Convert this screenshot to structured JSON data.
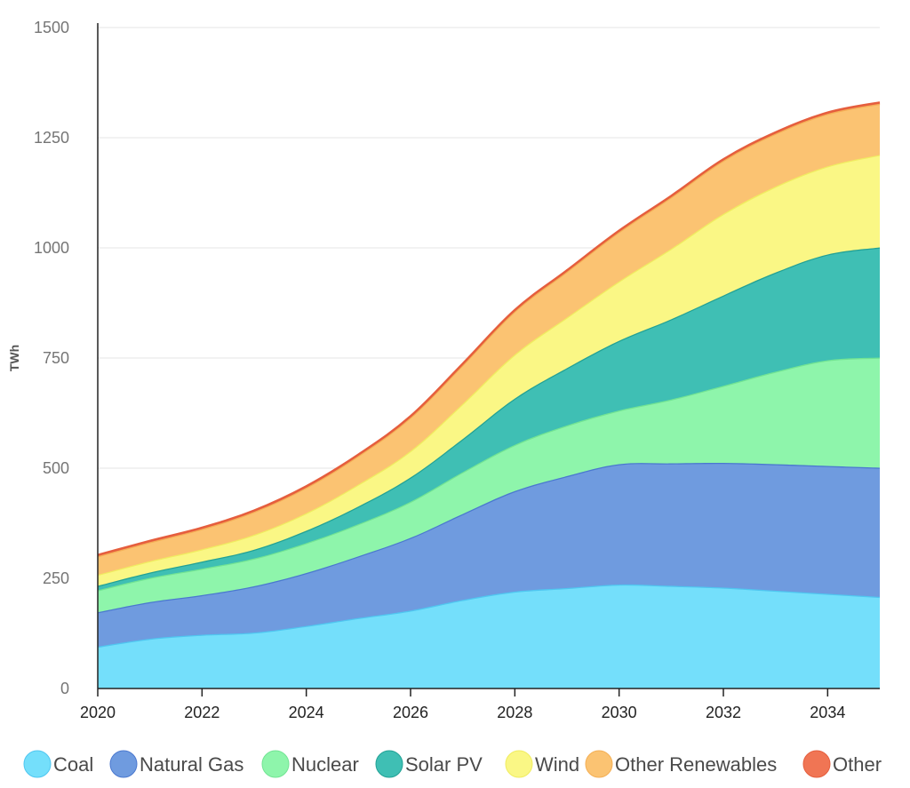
{
  "chart_data": {
    "type": "area",
    "stacked": true,
    "title": "",
    "xlabel": "",
    "ylabel": "TWh",
    "xlim": [
      2020,
      2035
    ],
    "ylim": [
      0,
      1500
    ],
    "x": [
      2020,
      2021,
      2022,
      2023,
      2024,
      2025,
      2026,
      2027,
      2028,
      2029,
      2030,
      2031,
      2032,
      2033,
      2034,
      2035
    ],
    "x_ticks": [
      "2020",
      "2022",
      "2024",
      "2026",
      "2028",
      "2030",
      "2032",
      "2034"
    ],
    "y_ticks": [
      "0",
      "250",
      "500",
      "750",
      "1000",
      "1250",
      "1500"
    ],
    "grid": "horizontal",
    "legend_position": "bottom",
    "series": [
      {
        "name": "Coal",
        "fill": "#74DFFB",
        "stroke": "#4FC6F0",
        "values": [
          95,
          113,
          122,
          127,
          142,
          160,
          177,
          201,
          220,
          228,
          236,
          233,
          229,
          222,
          215,
          208
        ]
      },
      {
        "name": "Natural Gas",
        "fill": "#6F9BDF",
        "stroke": "#4A78CF",
        "values": [
          78,
          83,
          90,
          105,
          120,
          140,
          165,
          195,
          228,
          254,
          273,
          278,
          283,
          287,
          290,
          293
        ]
      },
      {
        "name": "Nuclear",
        "fill": "#8EF5AB",
        "stroke": "#72E493",
        "values": [
          50,
          55,
          60,
          63,
          68,
          73,
          82,
          95,
          105,
          115,
          122,
          145,
          175,
          210,
          240,
          250
        ]
      },
      {
        "name": "Solar PV",
        "fill": "#3FBFB4",
        "stroke": "#22A195",
        "values": [
          10,
          12,
          16,
          20,
          28,
          40,
          55,
          75,
          105,
          130,
          158,
          182,
          205,
          225,
          240,
          250
        ]
      },
      {
        "name": "Wind",
        "fill": "#FAF785",
        "stroke": "#F0EC60",
        "values": [
          25,
          26,
          28,
          34,
          40,
          50,
          60,
          80,
          100,
          115,
          135,
          160,
          185,
          195,
          200,
          210
        ]
      },
      {
        "name": "Other Renewables",
        "fill": "#FBC372",
        "stroke": "#F4AF55",
        "values": [
          42,
          43,
          46,
          52,
          58,
          65,
          76,
          88,
          98,
          104,
          112,
          117,
          121,
          120,
          119,
          116
        ]
      },
      {
        "name": "Other",
        "fill": "#F07554",
        "stroke": "#E55E3D",
        "values": [
          3,
          3,
          3,
          3,
          3,
          3,
          3,
          3,
          3,
          3,
          3,
          3,
          3,
          3,
          3,
          3
        ]
      }
    ]
  }
}
